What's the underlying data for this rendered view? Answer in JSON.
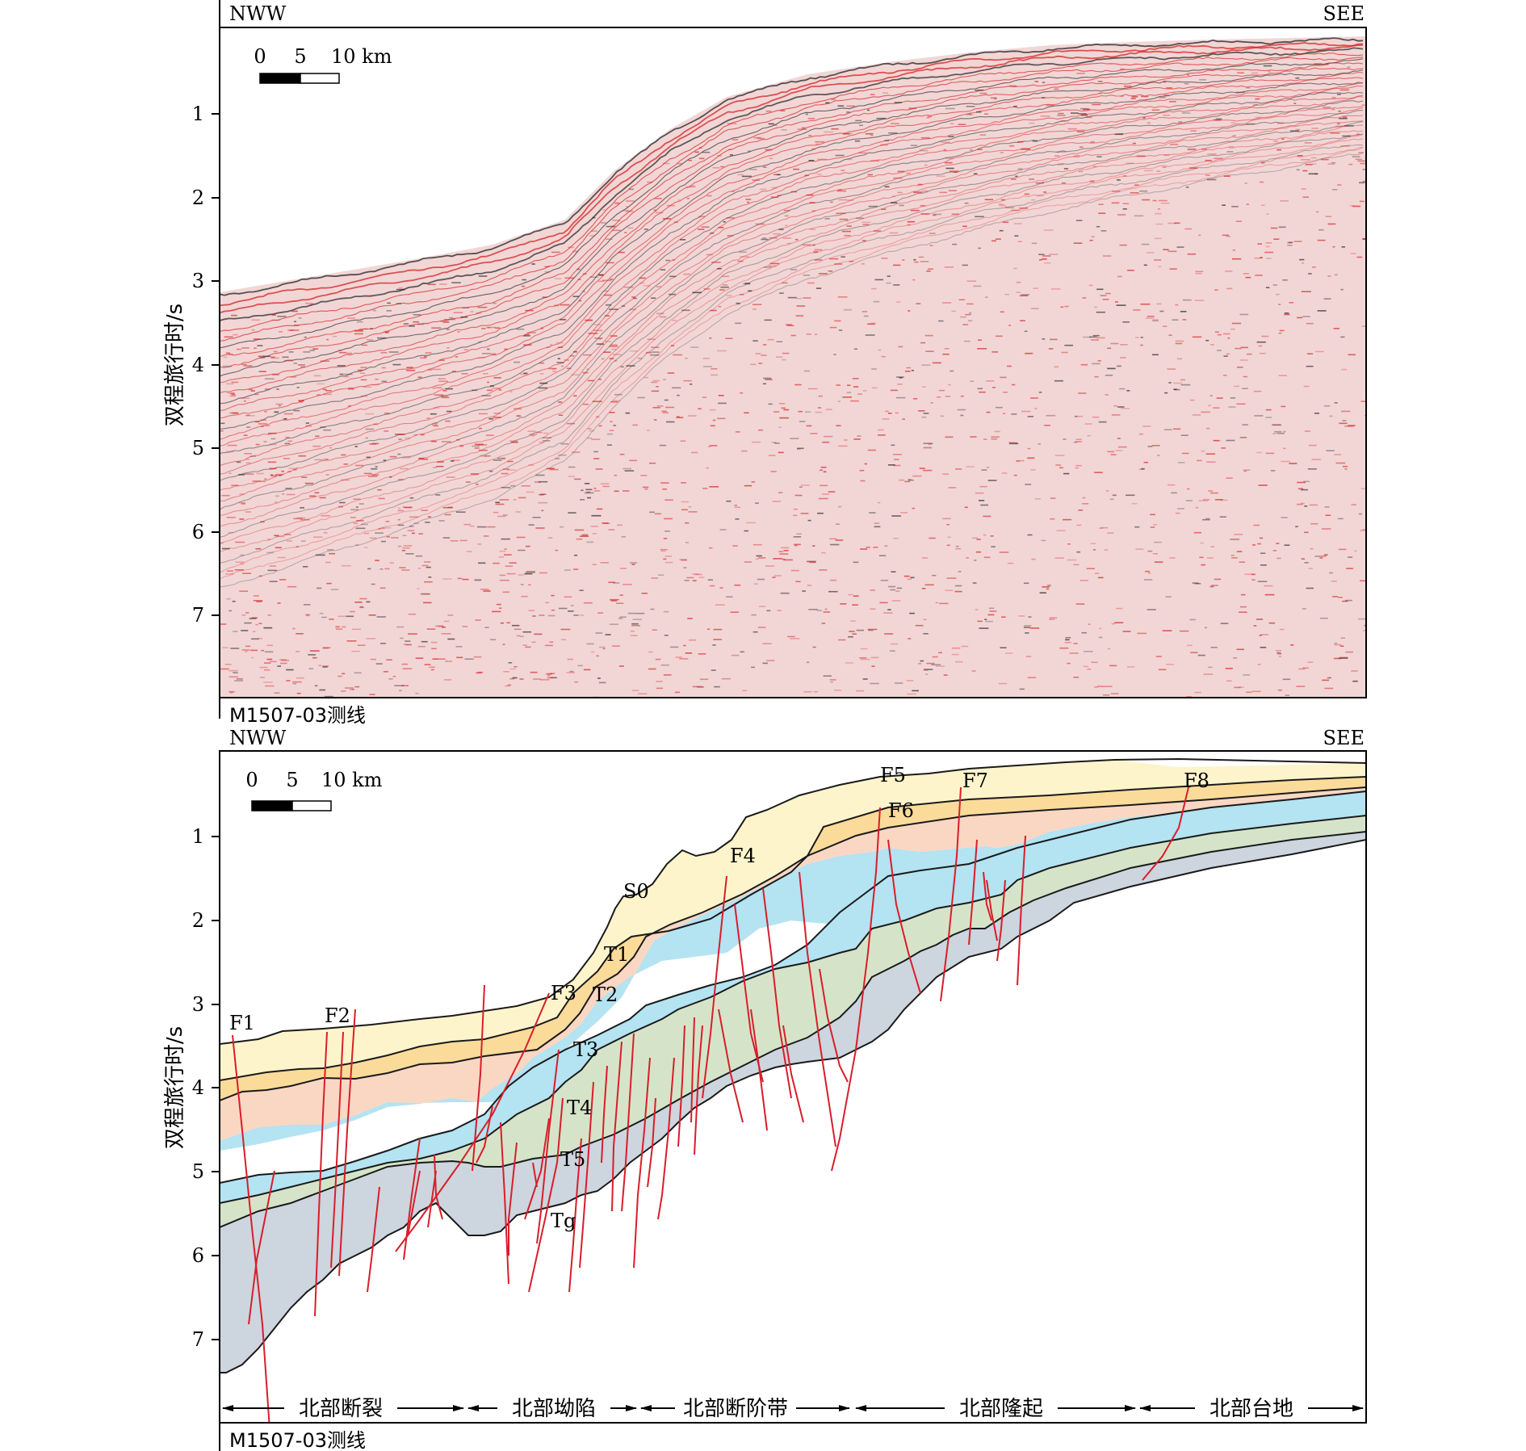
{
  "top_panel": {
    "left_direction": "NWW",
    "right_direction": "SEE",
    "y_axis_title": "双程旅行时/s",
    "y_ticks": [
      "1",
      "2",
      "3",
      "4",
      "5",
      "6",
      "7"
    ],
    "scale_bar": {
      "labels": [
        "0",
        "5",
        "10 km"
      ]
    },
    "line_label": "M1507-03测线",
    "colors": {
      "seismic_red": "#d21e1e",
      "seismic_dark": "#222222"
    }
  },
  "bottom_panel": {
    "left_direction": "NWW",
    "right_direction": "SEE",
    "y_axis_title": "双程旅行时/s",
    "y_ticks": [
      "1",
      "2",
      "3",
      "4",
      "5",
      "6",
      "7"
    ],
    "scale_bar": {
      "labels": [
        "0",
        "5",
        "10 km"
      ]
    },
    "line_label": "M1507-03测线",
    "horizon_labels": [
      "S0",
      "T1",
      "T2",
      "T3",
      "T4",
      "T5",
      "Tg"
    ],
    "fault_labels": [
      "F1",
      "F2",
      "F3",
      "F4",
      "F5",
      "F6",
      "F7",
      "F8"
    ],
    "zones": [
      "北部断裂",
      "北部坳陷",
      "北部断阶带",
      "北部隆起",
      "北部台地"
    ],
    "layer_colors": {
      "S0_T1": "#fdf4cc",
      "T1_T2": "#fadb9a",
      "T2_T3": "#fad7c3",
      "T3_T4": "#b4e3f2",
      "T4_T5": "#d5e4c9",
      "T5_Tg": "#cdd5de"
    },
    "fault_color": "#d81e2a"
  }
}
